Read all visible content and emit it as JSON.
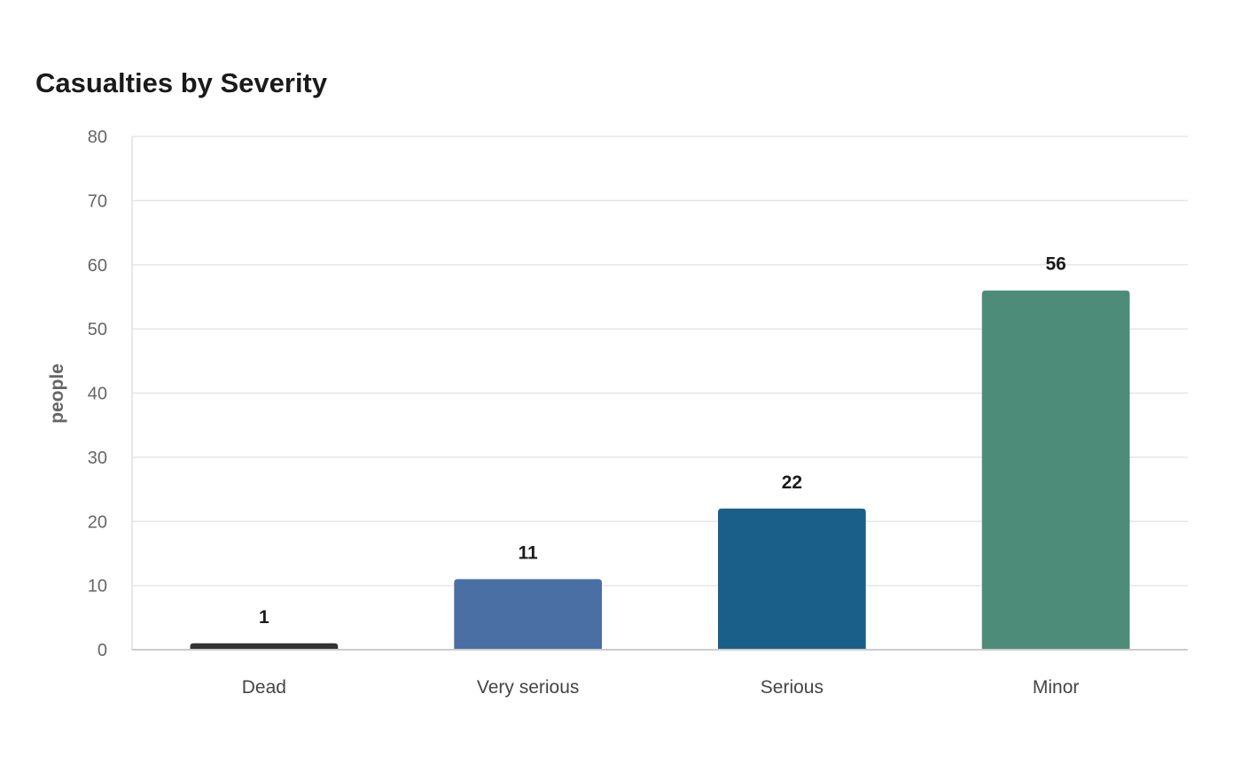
{
  "chart_data": {
    "type": "bar",
    "title": "Casualties by Severity",
    "xlabel": "",
    "ylabel": "people",
    "categories": [
      "Dead",
      "Very serious",
      "Serious",
      "Minor"
    ],
    "values": [
      1,
      11,
      22,
      56
    ],
    "data_labels": [
      "1",
      "11",
      "22",
      "56"
    ],
    "colors": [
      "#333333",
      "#4a6fa5",
      "#1a5f8a",
      "#4e8c7a"
    ],
    "ylim": [
      0,
      80
    ],
    "yticks": [
      0,
      10,
      20,
      30,
      40,
      50,
      60,
      70,
      80
    ],
    "ytick_labels": [
      "0",
      "10",
      "20",
      "30",
      "40",
      "50",
      "60",
      "70",
      "80"
    ],
    "grid": true,
    "legend": "none"
  }
}
